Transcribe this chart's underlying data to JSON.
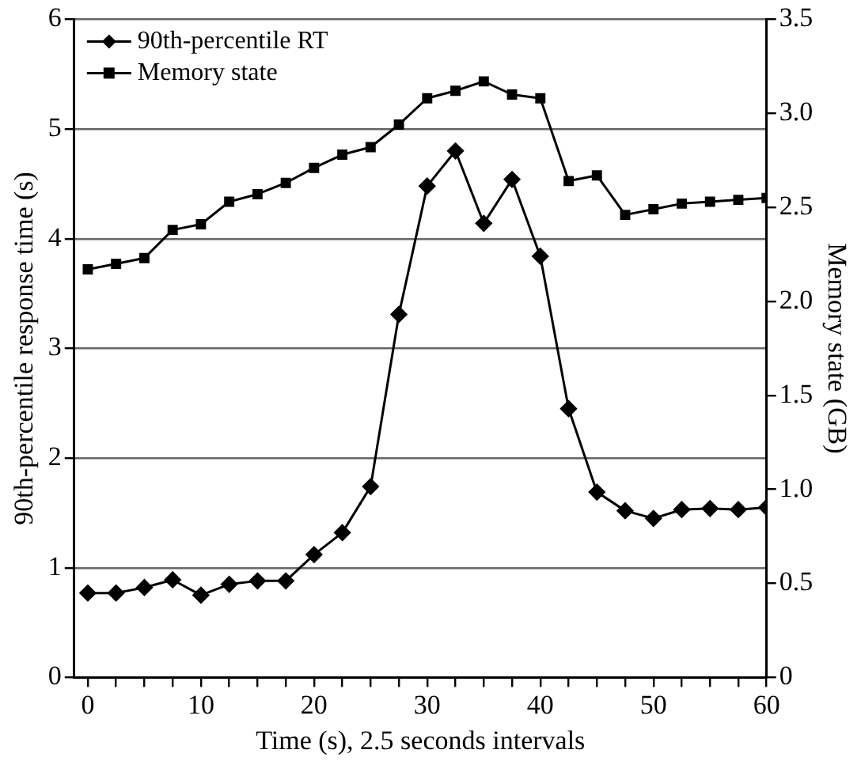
{
  "chart_data": {
    "type": "line",
    "xlabel": "Time (s), 2.5 seconds intervals",
    "ylabel": "90th-percentile response time (s)",
    "y2label": "Memory state (GB)",
    "x": [
      0,
      2.5,
      5,
      7.5,
      10,
      12.5,
      15,
      17.5,
      20,
      22.5,
      25,
      27.5,
      30,
      32.5,
      35,
      37.5,
      40,
      42.5,
      45,
      47.5,
      50,
      52.5,
      55,
      57.5,
      60
    ],
    "series": [
      {
        "name": "90th-percentile RT",
        "color": "#000000",
        "marker": "diamond",
        "values": [
          0.77,
          0.77,
          0.82,
          0.89,
          0.75,
          0.85,
          0.88,
          0.88,
          1.12,
          1.32,
          1.74,
          3.31,
          4.48,
          4.8,
          4.14,
          4.54,
          3.84,
          2.45,
          1.69,
          1.52,
          1.45,
          1.53,
          1.54,
          1.53,
          1.55
        ]
      },
      {
        "name": "Memory state",
        "color": "#000000",
        "marker": "square",
        "axis": "y2",
        "values": [
          2.17,
          2.2,
          2.23,
          2.38,
          2.41,
          2.53,
          2.57,
          2.63,
          2.71,
          2.78,
          2.82,
          2.94,
          3.08,
          3.12,
          3.17,
          3.1,
          3.08,
          2.64,
          2.67,
          2.46,
          2.49,
          2.52,
          2.53,
          2.54,
          2.55
        ]
      }
    ],
    "xlim": [
      -1.2,
      60
    ],
    "xticks": [
      0,
      {
        "value": 2.5,
        "label": null
      },
      {
        "value": 5,
        "label": null
      },
      {
        "value": 7.5,
        "label": null
      },
      10,
      {
        "value": 12.5,
        "label": null
      },
      {
        "value": 15,
        "label": null
      },
      {
        "value": 17.5,
        "label": null
      },
      20,
      {
        "value": 22.5,
        "label": null
      },
      {
        "value": 25,
        "label": null
      },
      {
        "value": 27.5,
        "label": null
      },
      30,
      {
        "value": 32.5,
        "label": null
      },
      {
        "value": 35,
        "label": null
      },
      {
        "value": 37.5,
        "label": null
      },
      40,
      {
        "value": 42.5,
        "label": null
      },
      {
        "value": 45,
        "label": null
      },
      {
        "value": 47.5,
        "label": null
      },
      50,
      {
        "value": 52.5,
        "label": null
      },
      {
        "value": 55,
        "label": null
      },
      {
        "value": 57.5,
        "label": null
      },
      60
    ],
    "ylim": [
      0,
      6
    ],
    "yticks": [
      0,
      1,
      2,
      3,
      4,
      5,
      6
    ],
    "y2lim": [
      0,
      3.5
    ],
    "y2ticks": [
      {
        "value": 0,
        "label": "0"
      },
      {
        "value": 0.5,
        "label": "0.5"
      },
      {
        "value": 1,
        "label": "1.0"
      },
      {
        "value": 1.5,
        "label": "1.5"
      },
      {
        "value": 2,
        "label": "2.0"
      },
      {
        "value": 2.5,
        "label": "2.5"
      },
      {
        "value": 3,
        "label": "3.0"
      },
      {
        "value": 3.5,
        "label": "3.5"
      }
    ],
    "grid": "y",
    "legend": "top left",
    "line_style": "solid"
  }
}
